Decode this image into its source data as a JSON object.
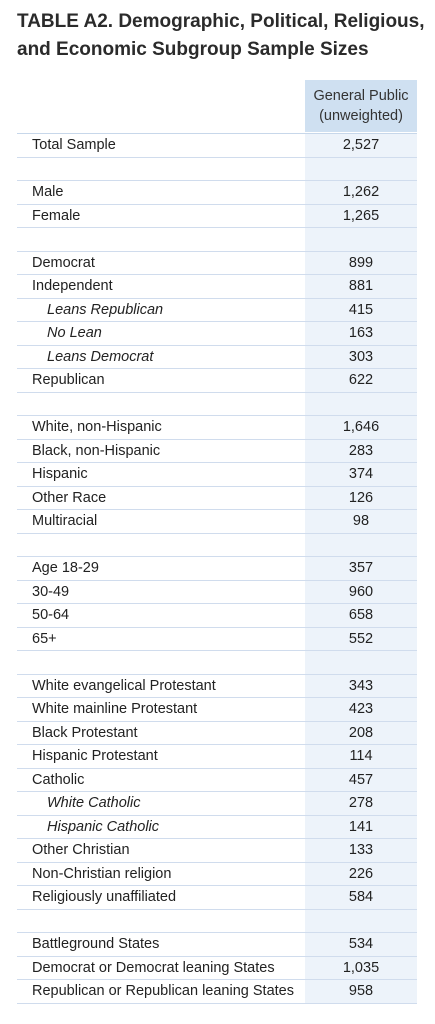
{
  "title": "TABLE A2. Demographic, Political, Religious, and Economic Subgroup Sample Sizes",
  "column_header": {
    "line1": "General Public",
    "line2": "(unweighted)"
  },
  "rows": [
    {
      "label": "Total Sample",
      "value": "2,527",
      "indent": false
    },
    {
      "label": "",
      "value": "",
      "indent": false
    },
    {
      "label": "Male",
      "value": "1,262",
      "indent": false
    },
    {
      "label": "Female",
      "value": "1,265",
      "indent": false
    },
    {
      "label": "",
      "value": "",
      "indent": false
    },
    {
      "label": "Democrat",
      "value": "899",
      "indent": false
    },
    {
      "label": "Independent",
      "value": "881",
      "indent": false
    },
    {
      "label": "Leans Republican",
      "value": "415",
      "indent": true
    },
    {
      "label": "No Lean",
      "value": "163",
      "indent": true
    },
    {
      "label": "Leans Democrat",
      "value": "303",
      "indent": true
    },
    {
      "label": "Republican",
      "value": "622",
      "indent": false
    },
    {
      "label": "",
      "value": "",
      "indent": false
    },
    {
      "label": "White, non-Hispanic",
      "value": "1,646",
      "indent": false
    },
    {
      "label": "Black, non-Hispanic",
      "value": "283",
      "indent": false
    },
    {
      "label": "Hispanic",
      "value": "374",
      "indent": false
    },
    {
      "label": "Other Race",
      "value": "126",
      "indent": false
    },
    {
      "label": "Multiracial",
      "value": "98",
      "indent": false
    },
    {
      "label": "",
      "value": "",
      "indent": false
    },
    {
      "label": "Age 18-29",
      "value": "357",
      "indent": false
    },
    {
      "label": "30-49",
      "value": "960",
      "indent": false
    },
    {
      "label": "50-64",
      "value": "658",
      "indent": false
    },
    {
      "label": "65+",
      "value": "552",
      "indent": false
    },
    {
      "label": "",
      "value": "",
      "indent": false
    },
    {
      "label": "White evangelical Protestant",
      "value": "343",
      "indent": false
    },
    {
      "label": "White mainline Protestant",
      "value": "423",
      "indent": false
    },
    {
      "label": "Black Protestant",
      "value": "208",
      "indent": false
    },
    {
      "label": "Hispanic Protestant",
      "value": "114",
      "indent": false
    },
    {
      "label": "Catholic",
      "value": "457",
      "indent": false
    },
    {
      "label": "White Catholic",
      "value": "278",
      "indent": true
    },
    {
      "label": "Hispanic Catholic",
      "value": "141",
      "indent": true
    },
    {
      "label": "Other Christian",
      "value": "133",
      "indent": false
    },
    {
      "label": "Non-Christian religion",
      "value": "226",
      "indent": false
    },
    {
      "label": "Religiously unaffiliated",
      "value": "584",
      "indent": false
    },
    {
      "label": "",
      "value": "",
      "indent": false
    },
    {
      "label": "Battleground States",
      "value": "534",
      "indent": false
    },
    {
      "label": "Democrat or Democrat leaning States",
      "value": "1,035",
      "indent": false
    },
    {
      "label": "Republican or Republican leaning States",
      "value": "958",
      "indent": false
    }
  ]
}
